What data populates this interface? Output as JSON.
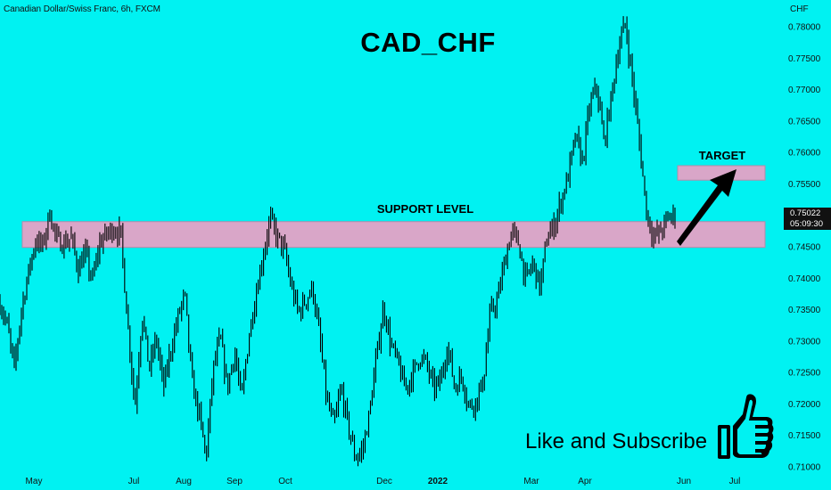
{
  "header": {
    "symbol_info": "Canadian Dollar/Swiss Franc, 6h, FXCM",
    "currency": "CHF"
  },
  "annotations": {
    "title": "CAD_CHF",
    "support_label": "SUPPORT LEVEL",
    "target_label": "TARGET",
    "call_to_action": "Like and Subscribe"
  },
  "price_tag": {
    "price": "0.75022",
    "countdown": "05:09:30"
  },
  "icons": [
    "thumbs-up-icon",
    "arrow-icon"
  ],
  "colors": {
    "background": "#00F2F2",
    "zone": "#D9A6C8",
    "zone_border": "#B889A8",
    "candles": "#000000"
  },
  "chart_data": {
    "type": "line",
    "instrument": "CAD_CHF",
    "ylim": [
      0.709,
      0.7815
    ],
    "y_ticks": [
      "0.78000",
      "0.77500",
      "0.77000",
      "0.76500",
      "0.76000",
      "0.75500",
      "0.75000",
      "0.74500",
      "0.74000",
      "0.73500",
      "0.73000",
      "0.72500",
      "0.72000",
      "0.71500",
      "0.71000"
    ],
    "x_ticks": [
      "May",
      "Jul",
      "Aug",
      "Sep",
      "Oct",
      "Dec",
      "2022",
      "Mar",
      "Apr",
      "Jun",
      "Jul"
    ],
    "series": [
      {
        "values": [
          0.736,
          0.7325,
          0.7255,
          0.735,
          0.741,
          0.746,
          0.745,
          0.7505,
          0.746,
          0.7455,
          0.7465,
          0.7415,
          0.744,
          0.7395,
          0.7455,
          0.747,
          0.748,
          0.747,
          0.7325,
          0.7195,
          0.7345,
          0.7255,
          0.7305,
          0.7225,
          0.7285,
          0.7335,
          0.7375,
          0.7235,
          0.7185,
          0.7115,
          0.7255,
          0.7305,
          0.7225,
          0.7285,
          0.7205,
          0.7305,
          0.7375,
          0.7435,
          0.7495,
          0.7465,
          0.7445,
          0.7385,
          0.7345,
          0.7365,
          0.7385,
          0.7305,
          0.7205,
          0.7165,
          0.7225,
          0.7165,
          0.7115,
          0.7125,
          0.7185,
          0.7275,
          0.7355,
          0.7295,
          0.7265,
          0.7225,
          0.7245,
          0.7275,
          0.7265,
          0.7225,
          0.7235,
          0.7295,
          0.7225,
          0.7245,
          0.7195,
          0.7205,
          0.7235,
          0.7345,
          0.7365,
          0.7425,
          0.7475,
          0.7455,
          0.7395,
          0.7425,
          0.7385,
          0.7465,
          0.7485,
          0.7525,
          0.7565,
          0.7625,
          0.7585,
          0.7675,
          0.7705,
          0.7615,
          0.7685,
          0.7765,
          0.7805,
          0.7715,
          0.7615,
          0.7505,
          0.7465,
          0.7475,
          0.7495,
          0.7502
        ]
      }
    ],
    "support_zone": [
      0.7449,
      0.749
    ],
    "target_zone": [
      0.7556,
      0.7579
    ],
    "last_price": 0.75022
  }
}
